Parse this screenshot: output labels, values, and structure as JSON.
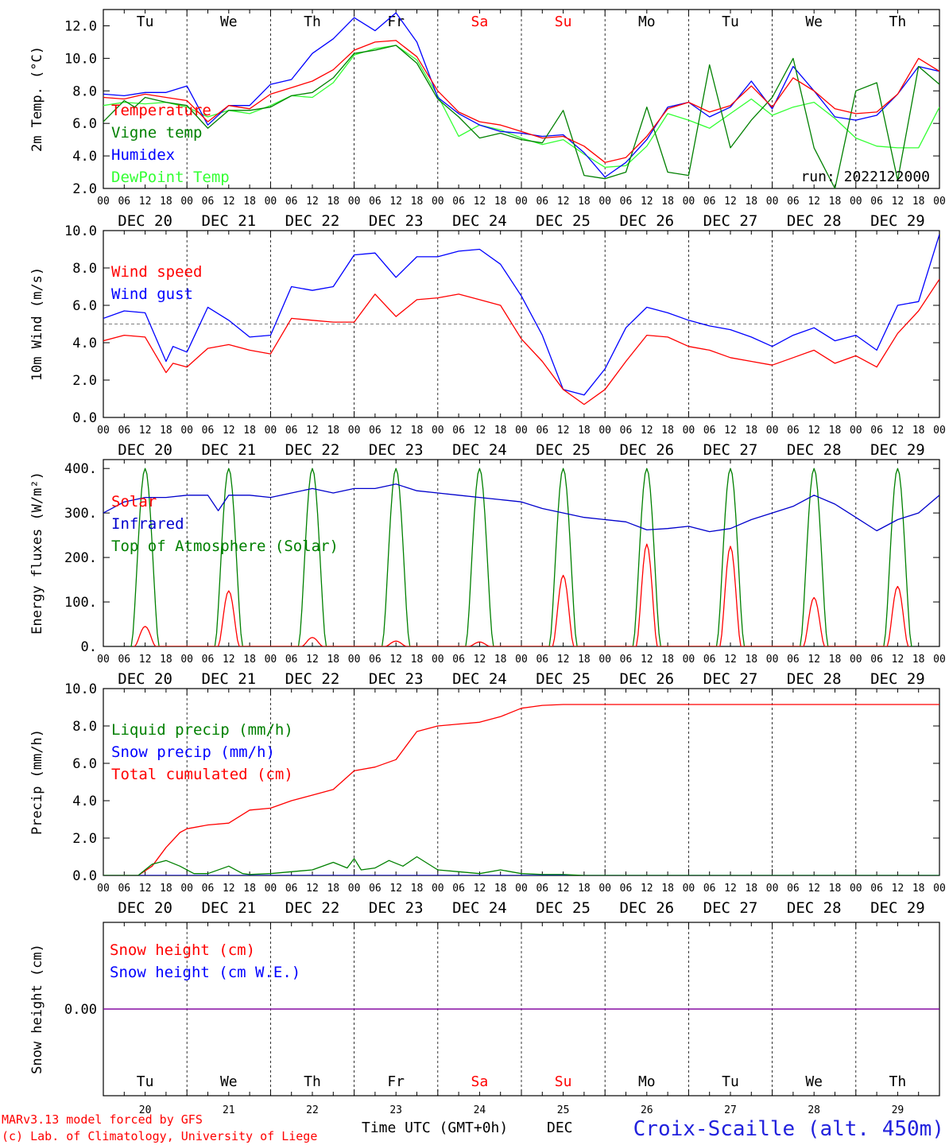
{
  "footer": {
    "credit_line1": "MARv3.13 model forced by GFS",
    "credit_line2": "(c) Lab. of Climatology, University of Liege",
    "time_axis_label": "Time UTC (GMT+0h)",
    "month_label": "DEC",
    "station": "Croix-Scaille (alt. 450m)"
  },
  "timeline": {
    "dates": [
      "DEC 20",
      "DEC 21",
      "DEC 22",
      "DEC 23",
      "DEC 24",
      "DEC 25",
      "DEC 26",
      "DEC 27",
      "DEC 28",
      "DEC 29"
    ],
    "day_numbers": [
      "20",
      "21",
      "22",
      "23",
      "24",
      "25",
      "26",
      "27",
      "28",
      "29"
    ],
    "weekdays": [
      "Tu",
      "We",
      "Th",
      "Fr",
      "Sa",
      "Su",
      "Mo",
      "Tu",
      "We",
      "Th"
    ],
    "weekend_flags": [
      false,
      false,
      false,
      false,
      true,
      true,
      false,
      false,
      false,
      false
    ],
    "hour_labels": [
      "00",
      "06",
      "12",
      "18"
    ],
    "final_hour_label": "00",
    "weekday_color": "#000000",
    "weekend_color": "#ff0000"
  },
  "colors": {
    "red": "#ff0000",
    "dark_green": "#008000",
    "blue": "#0000ff",
    "light_green": "#33ff33",
    "navy": "#0000cc",
    "purple": "#8000a0",
    "station_blue": "#2222dd"
  },
  "chart_data": [
    {
      "type": "line",
      "ylabel": "2m Temp. (°C)",
      "ylim": [
        2.0,
        13.0
      ],
      "yticks": [
        "2.0",
        "4.0",
        "6.0",
        "8.0",
        "10.0",
        "12.0"
      ],
      "run_label": "run: 2022122000",
      "show_weekdays": true,
      "x_unit": "hours since 2022-12-20 00 UTC",
      "xlim": [
        0,
        240
      ],
      "series": [
        {
          "name": "Temperature",
          "color": "#ff0000",
          "x": [
            0,
            6,
            12,
            18,
            24,
            30,
            36,
            42,
            48,
            54,
            60,
            66,
            72,
            78,
            84,
            90,
            96,
            102,
            108,
            114,
            120,
            126,
            132,
            138,
            144,
            150,
            156,
            162,
            168,
            174,
            180,
            186,
            192,
            198,
            204,
            210,
            216,
            222,
            228,
            234,
            240
          ],
          "y": [
            7.6,
            7.5,
            7.8,
            7.6,
            7.4,
            6.1,
            7.1,
            6.9,
            7.8,
            8.2,
            8.6,
            9.3,
            10.5,
            11.0,
            11.1,
            10.1,
            8.0,
            6.7,
            6.1,
            5.9,
            5.5,
            5.1,
            5.2,
            4.6,
            3.6,
            3.9,
            5.2,
            6.9,
            7.3,
            6.7,
            7.1,
            8.3,
            7.0,
            8.8,
            8.0,
            6.9,
            6.6,
            6.7,
            7.8,
            10.0,
            9.2
          ]
        },
        {
          "name": "Vigne temp",
          "color": "#008000",
          "x": [
            0,
            6,
            9,
            12,
            18,
            24,
            30,
            36,
            42,
            48,
            54,
            60,
            66,
            72,
            78,
            84,
            90,
            96,
            102,
            108,
            114,
            120,
            126,
            132,
            138,
            144,
            150,
            156,
            162,
            168,
            174,
            180,
            186,
            192,
            198,
            204,
            210,
            216,
            222,
            228,
            234,
            240
          ],
          "y": [
            6.1,
            7.4,
            7.0,
            7.6,
            7.3,
            7.1,
            5.7,
            6.8,
            6.8,
            7.0,
            7.7,
            7.9,
            8.8,
            10.3,
            10.5,
            10.8,
            9.7,
            7.5,
            6.4,
            5.1,
            5.4,
            5.0,
            4.8,
            6.8,
            2.8,
            2.6,
            3.0,
            7.0,
            3.0,
            2.8,
            9.6,
            4.5,
            6.2,
            7.6,
            10.0,
            4.5,
            2.0,
            8.0,
            8.5,
            2.5,
            9.5,
            8.4
          ]
        },
        {
          "name": "Humidex",
          "color": "#0000ff",
          "x": [
            0,
            6,
            12,
            18,
            24,
            30,
            36,
            42,
            48,
            54,
            60,
            66,
            72,
            78,
            84,
            90,
            96,
            102,
            108,
            114,
            120,
            126,
            132,
            138,
            144,
            150,
            156,
            162,
            168,
            174,
            180,
            186,
            192,
            198,
            204,
            210,
            216,
            222,
            228,
            234,
            240
          ],
          "y": [
            7.8,
            7.7,
            7.9,
            7.9,
            8.3,
            5.9,
            7.1,
            7.1,
            8.4,
            8.7,
            10.3,
            11.2,
            12.5,
            11.7,
            12.8,
            11.0,
            7.6,
            6.6,
            5.9,
            5.5,
            5.4,
            5.2,
            5.3,
            4.2,
            2.7,
            3.6,
            5.0,
            7.0,
            7.3,
            6.4,
            7.0,
            8.6,
            6.9,
            9.5,
            8.0,
            6.4,
            6.2,
            6.5,
            7.8,
            9.5,
            9.2
          ]
        },
        {
          "name": "DewPoint Temp",
          "color": "#33ff33",
          "x": [
            0,
            6,
            12,
            18,
            24,
            30,
            36,
            42,
            48,
            54,
            60,
            66,
            72,
            78,
            84,
            90,
            96,
            102,
            108,
            114,
            120,
            126,
            132,
            138,
            144,
            150,
            156,
            162,
            168,
            174,
            180,
            186,
            192,
            198,
            204,
            210,
            216,
            222,
            228,
            234,
            240
          ],
          "y": [
            7.1,
            7.3,
            7.2,
            7.3,
            7.0,
            6.4,
            6.8,
            6.6,
            7.1,
            7.7,
            7.6,
            8.5,
            10.2,
            10.6,
            10.8,
            9.9,
            7.7,
            5.2,
            5.9,
            5.6,
            5.1,
            4.7,
            5.0,
            4.1,
            3.3,
            3.4,
            4.6,
            6.6,
            6.2,
            5.7,
            6.6,
            7.5,
            6.5,
            7.0,
            7.3,
            6.3,
            5.1,
            4.6,
            4.5,
            4.5,
            7.0
          ]
        }
      ]
    },
    {
      "type": "line",
      "ylabel": "10m Wind (m/s)",
      "ylim": [
        0.0,
        10.0
      ],
      "yticks": [
        "0.0",
        "2.0",
        "4.0",
        "6.0",
        "8.0",
        "10.0"
      ],
      "reference_line": 5.0,
      "show_weekdays": false,
      "x_unit": "hours since 2022-12-20 00 UTC",
      "xlim": [
        0,
        240
      ],
      "series": [
        {
          "name": "Wind speed",
          "color": "#ff0000",
          "x": [
            0,
            6,
            12,
            18,
            20,
            24,
            30,
            36,
            42,
            48,
            54,
            60,
            66,
            72,
            78,
            84,
            90,
            96,
            102,
            108,
            114,
            120,
            126,
            132,
            138,
            144,
            150,
            156,
            162,
            168,
            174,
            180,
            186,
            192,
            198,
            204,
            210,
            216,
            222,
            228,
            234,
            240
          ],
          "y": [
            4.1,
            4.4,
            4.3,
            2.4,
            2.9,
            2.7,
            3.7,
            3.9,
            3.6,
            3.4,
            5.3,
            5.2,
            5.1,
            5.1,
            6.6,
            5.4,
            6.3,
            6.4,
            6.6,
            6.3,
            6.0,
            4.2,
            3.0,
            1.5,
            0.7,
            1.5,
            3.0,
            4.4,
            4.3,
            3.8,
            3.6,
            3.2,
            3.0,
            2.8,
            3.2,
            3.6,
            2.9,
            3.3,
            2.7,
            4.5,
            5.7,
            7.4
          ]
        },
        {
          "name": "Wind gust",
          "color": "#0000ff",
          "x": [
            0,
            6,
            12,
            18,
            20,
            24,
            30,
            36,
            42,
            48,
            54,
            60,
            66,
            72,
            78,
            84,
            90,
            96,
            102,
            108,
            114,
            120,
            126,
            132,
            138,
            144,
            150,
            156,
            162,
            168,
            174,
            180,
            186,
            192,
            198,
            204,
            210,
            216,
            222,
            228,
            234,
            240
          ],
          "y": [
            5.3,
            5.7,
            5.6,
            3.0,
            3.8,
            3.5,
            5.9,
            5.2,
            4.3,
            4.4,
            7.0,
            6.8,
            7.0,
            8.7,
            8.8,
            7.5,
            8.6,
            8.6,
            8.9,
            9.0,
            8.2,
            6.5,
            4.4,
            1.5,
            1.2,
            2.6,
            4.8,
            5.9,
            5.6,
            5.2,
            4.9,
            4.7,
            4.3,
            3.8,
            4.4,
            4.8,
            4.1,
            4.4,
            3.6,
            6.0,
            6.2,
            9.8
          ]
        }
      ]
    },
    {
      "type": "line",
      "ylabel": "Energy fluxes (W/m²)",
      "ylim": [
        0,
        420
      ],
      "yticks": [
        "0.",
        "100.",
        "200.",
        "300.",
        "400."
      ],
      "show_weekdays": false,
      "x_unit": "hours since 2022-12-20 00 UTC",
      "xlim": [
        0,
        240
      ],
      "series": [
        {
          "name": "Solar",
          "color": "#ff0000",
          "daily_peak_hour": 12,
          "daily_peak_values": [
            45,
            125,
            20,
            12,
            10,
            160,
            230,
            225,
            110,
            135
          ]
        },
        {
          "name": "Infrared",
          "color": "#0000cc",
          "x": [
            0,
            6,
            12,
            18,
            24,
            30,
            33,
            36,
            42,
            48,
            54,
            60,
            66,
            72,
            78,
            84,
            90,
            96,
            102,
            108,
            114,
            120,
            126,
            132,
            138,
            144,
            150,
            156,
            162,
            168,
            174,
            180,
            186,
            192,
            198,
            204,
            210,
            216,
            222,
            228,
            234,
            240
          ],
          "y": [
            300,
            325,
            335,
            335,
            340,
            340,
            305,
            340,
            340,
            335,
            345,
            355,
            345,
            355,
            355,
            365,
            350,
            345,
            340,
            335,
            330,
            325,
            310,
            300,
            290,
            285,
            280,
            262,
            265,
            270,
            258,
            265,
            285,
            300,
            315,
            340,
            320,
            290,
            260,
            285,
            300,
            340
          ]
        },
        {
          "name": "Top of Atmosphere (Solar)",
          "color": "#008000",
          "daily_peak_hour": 12,
          "daily_peak_values": [
            400,
            400,
            400,
            400,
            400,
            400,
            400,
            400,
            400,
            400
          ]
        }
      ]
    },
    {
      "type": "line",
      "ylabel": "Precip (mm/h)",
      "ylim": [
        0.0,
        10.0
      ],
      "yticks": [
        "0.0",
        "2.0",
        "4.0",
        "6.0",
        "8.0",
        "10.0"
      ],
      "show_weekdays": false,
      "x_unit": "hours since 2022-12-20 00 UTC",
      "xlim": [
        0,
        240
      ],
      "series": [
        {
          "name": "Liquid precip (mm/h)",
          "color": "#008000",
          "x": [
            0,
            10,
            14,
            18,
            22,
            26,
            30,
            36,
            40,
            42,
            48,
            54,
            60,
            66,
            70,
            72,
            74,
            78,
            82,
            86,
            90,
            96,
            102,
            108,
            114,
            120,
            126,
            132,
            138,
            144,
            160,
            200,
            240
          ],
          "y": [
            0,
            0,
            0.6,
            0.8,
            0.5,
            0.1,
            0.1,
            0.5,
            0.1,
            0.05,
            0.1,
            0.2,
            0.3,
            0.7,
            0.4,
            0.9,
            0.3,
            0.4,
            0.8,
            0.5,
            1.0,
            0.3,
            0.2,
            0.1,
            0.3,
            0.1,
            0.05,
            0.05,
            0,
            0,
            0,
            0,
            0
          ]
        },
        {
          "name": "Snow precip (mm/h)",
          "color": "#0000ff",
          "x": [
            0,
            240
          ],
          "y": [
            0,
            0
          ]
        },
        {
          "name": "Total cumulated (cm)",
          "color": "#ff0000",
          "x": [
            0,
            10,
            14,
            18,
            22,
            24,
            30,
            36,
            42,
            48,
            54,
            60,
            66,
            72,
            78,
            84,
            90,
            96,
            102,
            108,
            114,
            120,
            126,
            132,
            150,
            180,
            210,
            240
          ],
          "y": [
            0,
            0,
            0.5,
            1.5,
            2.3,
            2.5,
            2.7,
            2.8,
            3.5,
            3.6,
            4.0,
            4.3,
            4.6,
            5.6,
            5.8,
            6.2,
            7.7,
            8.0,
            8.1,
            8.2,
            8.5,
            8.95,
            9.1,
            9.15,
            9.15,
            9.15,
            9.15,
            9.15
          ]
        }
      ]
    },
    {
      "type": "line",
      "ylabel": "Snow height (cm)",
      "ylim": [
        -1.0,
        1.0
      ],
      "yticks": [
        "0.00"
      ],
      "show_weekdays": true,
      "x_unit": "hours since 2022-12-20 00 UTC",
      "xlim": [
        0,
        240
      ],
      "series": [
        {
          "name": "Snow height (cm)",
          "color": "#ff0000",
          "x": [
            0,
            240
          ],
          "y": [
            0,
            0
          ]
        },
        {
          "name": "Snow height (cm W.E.)",
          "color": "#0000ff",
          "x": [
            0,
            240
          ],
          "y": [
            0,
            0
          ]
        }
      ]
    }
  ]
}
